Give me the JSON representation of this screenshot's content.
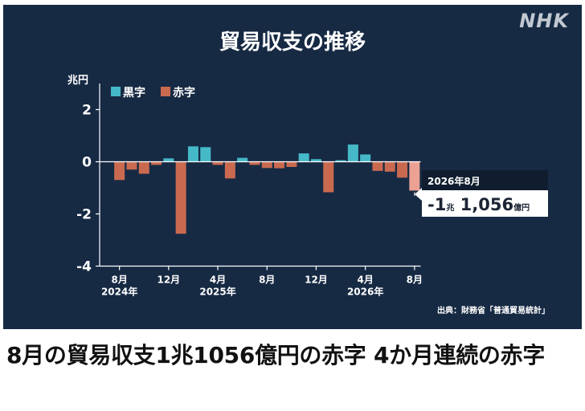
{
  "headline": "8月の貿易収支1兆1056億円の赤字 4か月連続の赤字",
  "logo": "NHK",
  "source": "出典：財務省「普通貿易統計」",
  "colors": {
    "panel_bg": "#172a44",
    "surplus": "#45b9c7",
    "deficit": "#c96a50",
    "highlight": "#eba294",
    "axis": "#ffffff"
  },
  "chart_data": {
    "type": "bar",
    "title": "貿易収支の推移",
    "ylabel": "兆円",
    "ylim": [
      -4,
      3
    ],
    "yticks": [
      2,
      0,
      -2,
      -4
    ],
    "ytick_labels": [
      "2",
      "0",
      "-2",
      "-4"
    ],
    "legend": {
      "placement": "top-left",
      "entries": [
        {
          "name": "黒字",
          "color": "#45b9c7"
        },
        {
          "name": "赤字",
          "color": "#c96a50"
        }
      ]
    },
    "categories": [
      "2024-08",
      "2024-09",
      "2024-10",
      "2024-11",
      "2024-12",
      "2025-01",
      "2025-02",
      "2025-03",
      "2025-04",
      "2025-05",
      "2025-06",
      "2025-07",
      "2025-08",
      "2025-09",
      "2025-10",
      "2025-11",
      "2025-12",
      "2026-01",
      "2026-02",
      "2026-03",
      "2026-04",
      "2026-05",
      "2026-06",
      "2026-07",
      "2026-08"
    ],
    "values": [
      -0.7,
      -0.3,
      -0.46,
      -0.12,
      0.13,
      -2.76,
      0.59,
      0.56,
      -0.12,
      -0.64,
      0.15,
      -0.12,
      -0.24,
      -0.25,
      -0.2,
      0.32,
      0.1,
      -1.17,
      0.06,
      0.66,
      0.28,
      -0.35,
      -0.38,
      -0.61,
      -1.1056
    ],
    "highlight_index": 24,
    "x_tick_labels": [
      {
        "index": 0,
        "month": "8月",
        "year": "2024年"
      },
      {
        "index": 4,
        "month": "12月",
        "year": ""
      },
      {
        "index": 8,
        "month": "4月",
        "year": "2025年"
      },
      {
        "index": 12,
        "month": "8月",
        "year": ""
      },
      {
        "index": 16,
        "month": "12月",
        "year": ""
      },
      {
        "index": 20,
        "month": "4月",
        "year": "2026年"
      },
      {
        "index": 24,
        "month": "8月",
        "year": ""
      }
    ],
    "annotation": {
      "index": 24,
      "date": "2026年8月",
      "parts": [
        {
          "text": "-1",
          "size": "big"
        },
        {
          "text": "兆",
          "size": "small"
        },
        {
          "text": " 1,056",
          "size": "big"
        },
        {
          "text": "億円",
          "size": "small"
        }
      ]
    }
  }
}
